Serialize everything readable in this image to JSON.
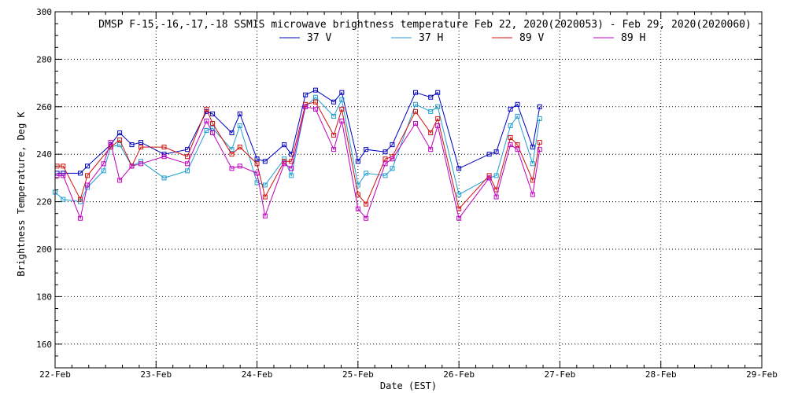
{
  "chart_data": {
    "type": "line",
    "title": "DMSP F-15,-16,-17,-18 SSMIS microwave brightness temperature Feb 22, 2020(2020053) - Feb 29, 2020(2020060)",
    "xlabel": "Date (EST)",
    "ylabel": "Brightness Temperature, Deg K",
    "xlim": [
      0,
      7
    ],
    "ylim": [
      150,
      300
    ],
    "grid": true,
    "legend_position": "top-center",
    "x_ticks": [
      {
        "v": 0,
        "label": "22-Feb"
      },
      {
        "v": 1,
        "label": "23-Feb"
      },
      {
        "v": 2,
        "label": "24-Feb"
      },
      {
        "v": 3,
        "label": "25-Feb"
      },
      {
        "v": 4,
        "label": "26-Feb"
      },
      {
        "v": 5,
        "label": "27-Feb"
      },
      {
        "v": 6,
        "label": "28-Feb"
      },
      {
        "v": 7,
        "label": "29-Feb"
      }
    ],
    "y_ticks": [
      {
        "v": 160,
        "label": "160"
      },
      {
        "v": 180,
        "label": "180"
      },
      {
        "v": 200,
        "label": "200"
      },
      {
        "v": 220,
        "label": "220"
      },
      {
        "v": 240,
        "label": "240"
      },
      {
        "v": 260,
        "label": "260"
      },
      {
        "v": 280,
        "label": "280"
      },
      {
        "v": 300,
        "label": "300"
      }
    ],
    "series": [
      {
        "name": "37 V",
        "color": "#0000c0",
        "x": [
          0.02,
          0.08,
          0.25,
          0.32,
          0.55,
          0.64,
          0.76,
          0.85,
          1.08,
          1.31,
          1.5,
          1.56,
          1.75,
          1.83,
          2.0,
          2.08,
          2.27,
          2.34,
          2.48,
          2.58,
          2.76,
          2.84,
          3.0,
          3.08,
          3.27,
          3.34,
          3.57,
          3.72,
          3.79,
          4.0,
          4.3,
          4.37,
          4.51,
          4.58,
          4.73,
          4.8
        ],
        "values": [
          232,
          232,
          232,
          235,
          244,
          249,
          244,
          245,
          240,
          242,
          258,
          257,
          249,
          257,
          238,
          237,
          244,
          240,
          265,
          267,
          262,
          266,
          237,
          242,
          241,
          244,
          266,
          264,
          266,
          234,
          240,
          241,
          259,
          261,
          243,
          260
        ]
      },
      {
        "name": "37 H",
        "color": "#1f9fd0",
        "x": [
          0.0,
          0.08,
          0.25,
          0.32,
          0.48,
          0.55,
          0.64,
          0.76,
          0.85,
          1.08,
          1.31,
          1.5,
          1.56,
          1.75,
          1.83,
          2.0,
          2.08,
          2.27,
          2.34,
          2.48,
          2.58,
          2.76,
          2.84,
          3.0,
          3.08,
          3.27,
          3.34,
          3.57,
          3.72,
          3.79,
          4.0,
          4.3,
          4.37,
          4.51,
          4.58,
          4.73,
          4.8
        ],
        "values": [
          224,
          221,
          220,
          226,
          233,
          243,
          244,
          235,
          237,
          230,
          233,
          250,
          251,
          242,
          252,
          228,
          227,
          238,
          231,
          260,
          264,
          256,
          263,
          227,
          232,
          231,
          234,
          261,
          258,
          260,
          223,
          230,
          231,
          252,
          256,
          236,
          255
        ]
      },
      {
        "name": "89 V",
        "color": "#d01010",
        "x": [
          0.02,
          0.08,
          0.25,
          0.32,
          0.55,
          0.64,
          0.76,
          0.85,
          1.08,
          1.31,
          1.5,
          1.56,
          1.75,
          1.83,
          2.0,
          2.08,
          2.27,
          2.34,
          2.48,
          2.58,
          2.76,
          2.84,
          3.0,
          3.08,
          3.27,
          3.34,
          3.57,
          3.72,
          3.79,
          4.0,
          4.3,
          4.37,
          4.51,
          4.58,
          4.73,
          4.8
        ],
        "values": [
          235,
          235,
          221,
          231,
          243,
          246,
          235,
          243,
          243,
          239,
          259,
          253,
          240,
          243,
          236,
          222,
          237,
          237,
          261,
          262,
          248,
          259,
          223,
          219,
          238,
          239,
          258,
          249,
          255,
          217,
          231,
          225,
          247,
          244,
          229,
          245
        ]
      },
      {
        "name": "89 H",
        "color": "#c000c0",
        "x": [
          0.02,
          0.08,
          0.25,
          0.32,
          0.48,
          0.55,
          0.64,
          0.76,
          0.85,
          1.08,
          1.31,
          1.5,
          1.56,
          1.75,
          1.83,
          2.0,
          2.08,
          2.27,
          2.34,
          2.48,
          2.58,
          2.76,
          2.84,
          3.0,
          3.08,
          3.27,
          3.34,
          3.57,
          3.72,
          3.79,
          4.0,
          4.3,
          4.37,
          4.51,
          4.58,
          4.73,
          4.8
        ],
        "values": [
          231,
          231,
          213,
          227,
          236,
          245,
          229,
          235,
          236,
          239,
          236,
          254,
          249,
          234,
          235,
          232,
          214,
          236,
          234,
          260,
          259,
          242,
          254,
          217,
          213,
          236,
          238,
          253,
          242,
          252,
          213,
          230,
          222,
          244,
          242,
          223,
          242
        ]
      }
    ]
  }
}
